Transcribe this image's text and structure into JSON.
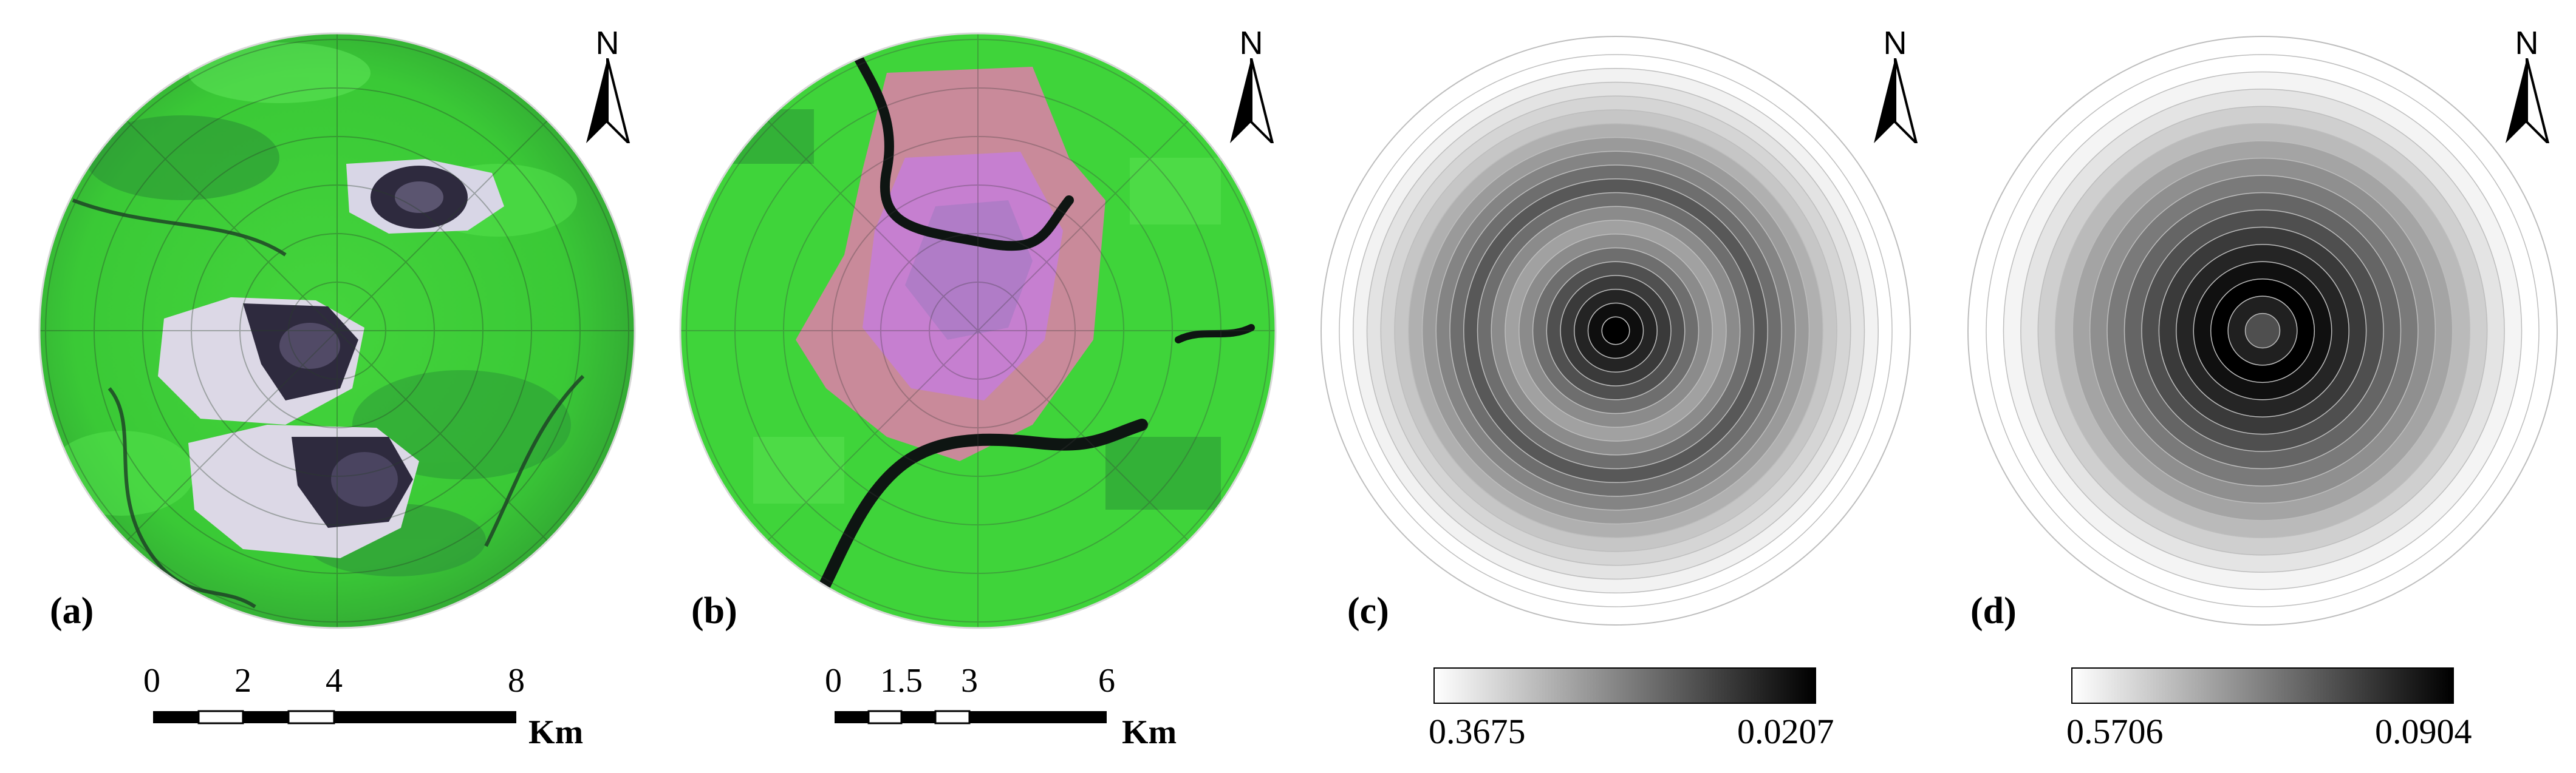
{
  "panels": [
    {
      "label": "(a)",
      "type": "satellite",
      "scale": {
        "ticks": [
          "0",
          "2",
          "4",
          "8"
        ],
        "unit": "Km"
      }
    },
    {
      "label": "(b)",
      "type": "satellite",
      "scale": {
        "ticks": [
          "0",
          "1.5",
          "3",
          "6"
        ],
        "unit": "Km"
      }
    },
    {
      "label": "(c)",
      "type": "rings",
      "legend": {
        "min_label": "0.3675",
        "max_label": "0.0207"
      },
      "ring_values": [
        0.0207,
        0.04,
        0.07,
        0.1,
        0.13,
        0.17,
        0.21,
        0.24,
        0.21,
        0.17,
        0.14,
        0.17,
        0.2,
        0.23,
        0.26,
        0.29,
        0.31,
        0.33,
        0.35,
        0.3675
      ]
    },
    {
      "label": "(d)",
      "type": "rings",
      "legend": {
        "min_label": "0.5706",
        "max_label": "0.0904"
      },
      "ring_values": [
        0.24,
        0.15,
        0.0904,
        0.12,
        0.16,
        0.2,
        0.24,
        0.28,
        0.32,
        0.36,
        0.4,
        0.44,
        0.48,
        0.52,
        0.55,
        0.5706
      ]
    }
  ],
  "north_letter": "N",
  "colors": {
    "vegetation": "#3fd43a",
    "urban": "#c67fd0",
    "soil": "#d79a80",
    "water": "#0e1512",
    "mine_pit": "#2e2a3e",
    "mine_spoil": "#d7d3e6",
    "ramp_light": "#ffffff",
    "ramp_dark": "#000000"
  }
}
